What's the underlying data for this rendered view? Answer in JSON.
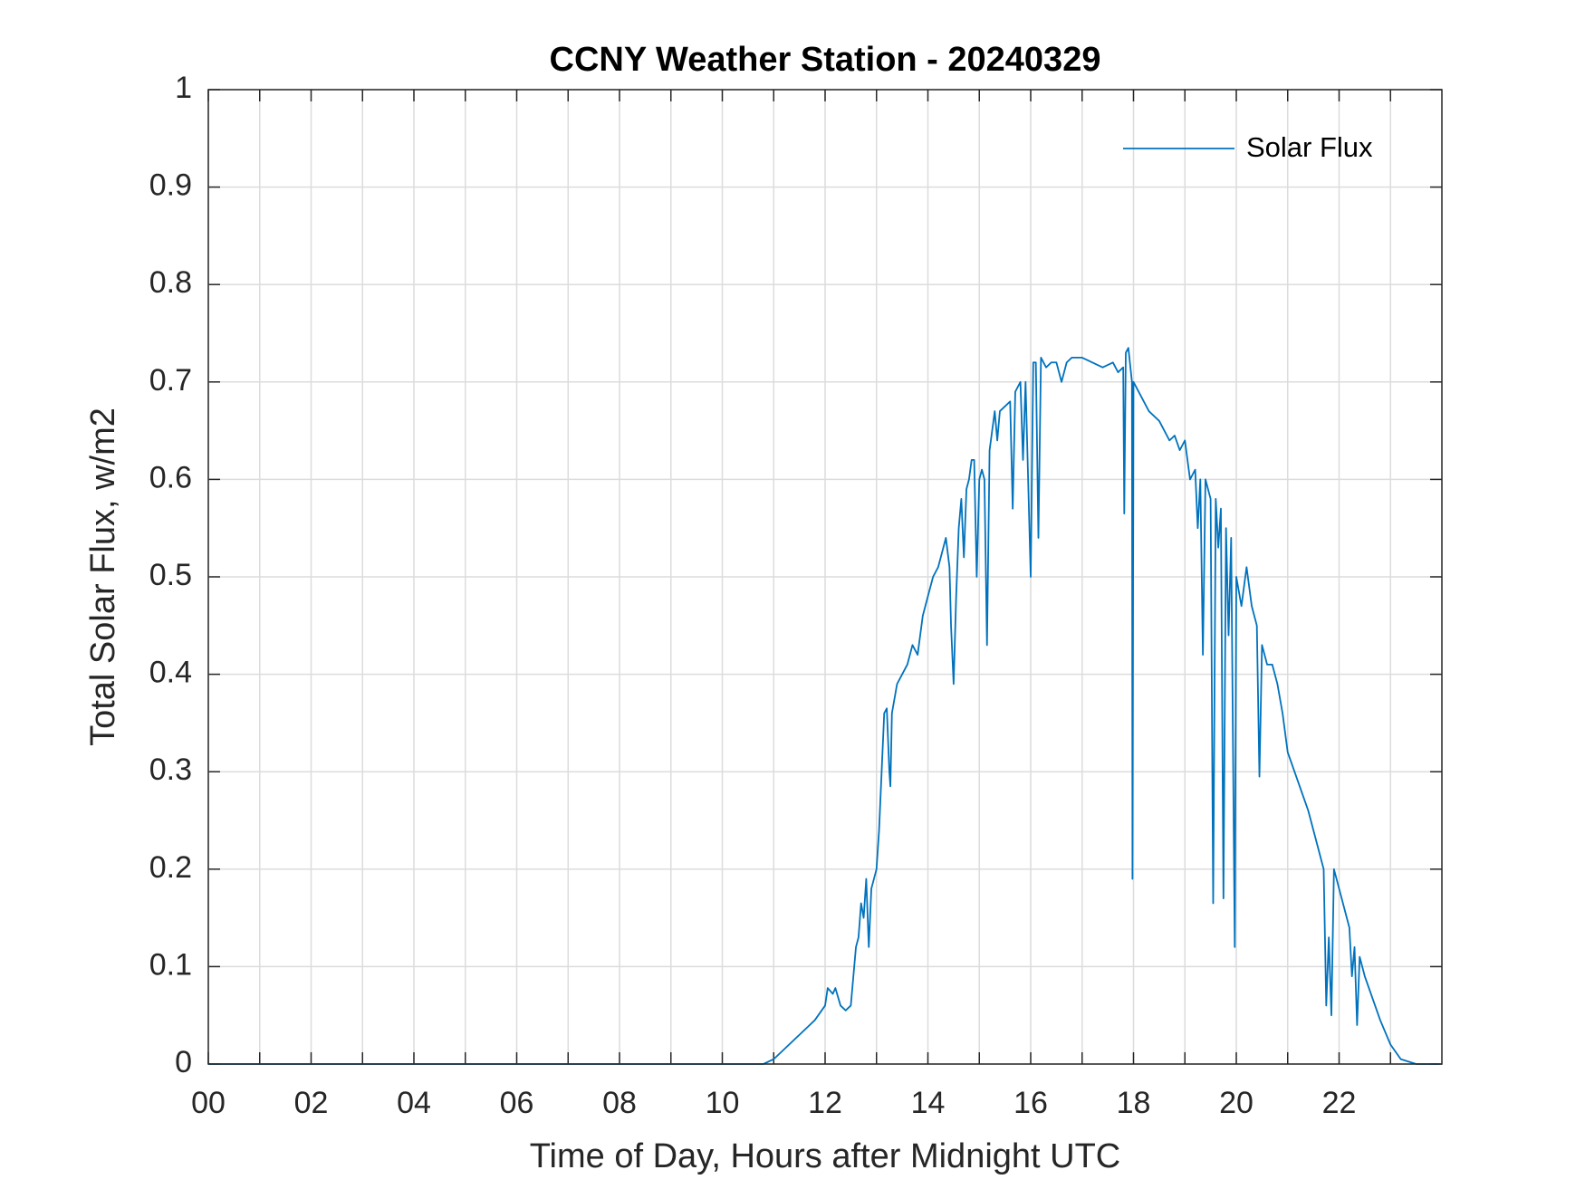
{
  "chart_data": {
    "type": "line",
    "title": "CCNY Weather Station - 20240329",
    "x_label": "Time of Day, Hours after Midnight UTC",
    "y_label": "Total Solar Flux, w/m2",
    "xlim": [
      0,
      24
    ],
    "ylim": [
      0,
      1
    ],
    "xticks": [
      {
        "value": 0,
        "label": "00"
      },
      {
        "value": 2,
        "label": "02"
      },
      {
        "value": 4,
        "label": "04"
      },
      {
        "value": 6,
        "label": "06"
      },
      {
        "value": 8,
        "label": "08"
      },
      {
        "value": 10,
        "label": "10"
      },
      {
        "value": 12,
        "label": "12"
      },
      {
        "value": 14,
        "label": "14"
      },
      {
        "value": 16,
        "label": "16"
      },
      {
        "value": 18,
        "label": "18"
      },
      {
        "value": 20,
        "label": "20"
      },
      {
        "value": 22,
        "label": "22"
      }
    ],
    "x_minor_ticks": [
      1,
      3,
      5,
      7,
      9,
      11,
      13,
      15,
      17,
      19,
      21,
      23
    ],
    "yticks": [
      0,
      0.1,
      0.2,
      0.3,
      0.4,
      0.5,
      0.6,
      0.7,
      0.8,
      0.9,
      1
    ],
    "grid": true,
    "legend": "upper-right",
    "x": [
      0,
      10.8,
      11.0,
      11.2,
      11.5,
      11.8,
      12.0,
      12.05,
      12.15,
      12.2,
      12.3,
      12.4,
      12.5,
      12.55,
      12.6,
      12.65,
      12.7,
      12.75,
      12.8,
      12.85,
      12.9,
      12.95,
      13.0,
      13.05,
      13.1,
      13.15,
      13.2,
      13.25,
      13.27,
      13.3,
      13.4,
      13.5,
      13.6,
      13.7,
      13.8,
      13.9,
      14.0,
      14.1,
      14.2,
      14.3,
      14.35,
      14.42,
      14.45,
      14.5,
      14.55,
      14.6,
      14.65,
      14.7,
      14.75,
      14.8,
      14.85,
      14.9,
      14.95,
      15.0,
      15.05,
      15.1,
      15.15,
      15.2,
      15.3,
      15.35,
      15.4,
      15.5,
      15.6,
      15.65,
      15.7,
      15.8,
      15.85,
      15.9,
      15.95,
      16.0,
      16.05,
      16.1,
      16.15,
      16.2,
      16.3,
      16.4,
      16.5,
      16.6,
      16.7,
      16.8,
      17.0,
      17.2,
      17.4,
      17.6,
      17.7,
      17.8,
      17.82,
      17.85,
      17.9,
      17.97,
      17.98,
      18.0,
      18.1,
      18.2,
      18.3,
      18.5,
      18.6,
      18.7,
      18.8,
      18.9,
      19.0,
      19.1,
      19.2,
      19.25,
      19.3,
      19.35,
      19.4,
      19.5,
      19.55,
      19.6,
      19.65,
      19.7,
      19.75,
      19.8,
      19.85,
      19.9,
      19.97,
      20.0,
      20.1,
      20.2,
      20.3,
      20.4,
      20.45,
      20.5,
      20.6,
      20.7,
      20.8,
      20.9,
      21.0,
      21.2,
      21.4,
      21.6,
      21.7,
      21.75,
      21.8,
      21.85,
      21.9,
      22.0,
      22.1,
      22.2,
      22.25,
      22.3,
      22.35,
      22.4,
      22.5,
      22.6,
      22.8,
      23.0,
      23.2,
      23.5,
      23.95
    ],
    "series": [
      {
        "name": "Solar Flux",
        "color": "#0072bd",
        "values": [
          0,
          0,
          0.005,
          0.015,
          0.03,
          0.045,
          0.06,
          0.078,
          0.072,
          0.078,
          0.06,
          0.055,
          0.06,
          0.09,
          0.12,
          0.13,
          0.165,
          0.15,
          0.19,
          0.12,
          0.18,
          0.19,
          0.2,
          0.24,
          0.3,
          0.36,
          0.365,
          0.3,
          0.285,
          0.36,
          0.39,
          0.4,
          0.41,
          0.43,
          0.42,
          0.46,
          0.48,
          0.5,
          0.51,
          0.53,
          0.54,
          0.51,
          0.45,
          0.39,
          0.48,
          0.55,
          0.58,
          0.52,
          0.59,
          0.6,
          0.62,
          0.62,
          0.5,
          0.6,
          0.61,
          0.6,
          0.43,
          0.63,
          0.67,
          0.64,
          0.67,
          0.675,
          0.68,
          0.57,
          0.69,
          0.7,
          0.62,
          0.7,
          0.6,
          0.5,
          0.72,
          0.72,
          0.54,
          0.725,
          0.715,
          0.72,
          0.72,
          0.7,
          0.72,
          0.725,
          0.725,
          0.72,
          0.715,
          0.72,
          0.71,
          0.715,
          0.565,
          0.73,
          0.735,
          0.7,
          0.19,
          0.7,
          0.69,
          0.68,
          0.67,
          0.66,
          0.65,
          0.64,
          0.645,
          0.63,
          0.64,
          0.6,
          0.61,
          0.55,
          0.6,
          0.42,
          0.6,
          0.58,
          0.165,
          0.58,
          0.53,
          0.57,
          0.17,
          0.55,
          0.44,
          0.54,
          0.12,
          0.5,
          0.47,
          0.51,
          0.47,
          0.45,
          0.295,
          0.43,
          0.41,
          0.41,
          0.39,
          0.36,
          0.32,
          0.29,
          0.26,
          0.22,
          0.2,
          0.06,
          0.13,
          0.05,
          0.2,
          0.18,
          0.16,
          0.14,
          0.09,
          0.12,
          0.04,
          0.11,
          0.09,
          0.075,
          0.045,
          0.02,
          0.005,
          0,
          0
        ]
      }
    ]
  }
}
